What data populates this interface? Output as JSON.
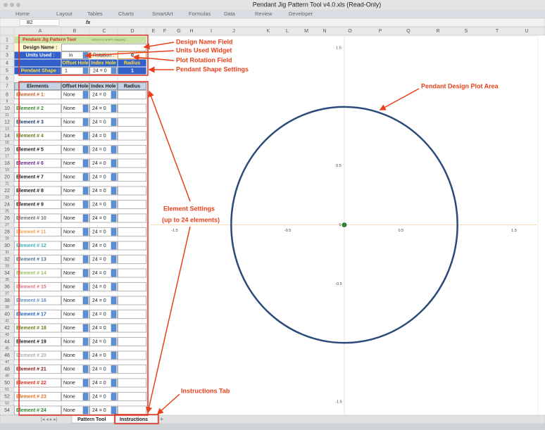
{
  "window": {
    "title": "Pendant Jig Pattern Tool v4.0.xls (Read-Only)"
  },
  "ribbon": {
    "tabs": [
      "Home",
      "Layout",
      "Tables",
      "Charts",
      "SmartArt",
      "Formulas",
      "Data",
      "Review",
      "Developer"
    ]
  },
  "formula_bar": {
    "cell": "B2",
    "fx": "fx"
  },
  "columns": [
    "A",
    "B",
    "C",
    "D",
    "E",
    "F",
    "G",
    "H",
    "I",
    "J",
    "K",
    "L",
    "M",
    "N",
    "O",
    "P",
    "Q",
    "R",
    "S",
    "T",
    "U"
  ],
  "rows": [
    1,
    2,
    3,
    4,
    5,
    6,
    7,
    8,
    9,
    10,
    11,
    12,
    13,
    14,
    15,
    16,
    17,
    18,
    19,
    20,
    21,
    22,
    23,
    24,
    25,
    26,
    27,
    28,
    29,
    30,
    31,
    32,
    33,
    34,
    35,
    36,
    37,
    38,
    39,
    40,
    41,
    42,
    43,
    44,
    45,
    46,
    47,
    48,
    49,
    50,
    51,
    52,
    53,
    54
  ],
  "form": {
    "title": "Pendant Jig Pattern Tool",
    "version": "version 4.0 by W.P. Kloepping",
    "design_name_label": "Design Name :",
    "units_label": "Units Used :",
    "units": "in",
    "rotation_label": "Rotation :",
    "rotation": 0,
    "shape_headers": [
      "Offset Hole",
      "Index Hole",
      "Radius"
    ],
    "shape_label": "Pendant Shape :",
    "shape": {
      "offset": 1,
      "index": "24 = 0",
      "radius": 1
    },
    "element_headers": [
      "Elements",
      "Offset Hole",
      "Index Hole",
      "Radius"
    ],
    "elements": [
      {
        "name": "Element # 1:",
        "offset": "None",
        "index": "24 = 0",
        "color": "#c0602a"
      },
      {
        "name": "Element # 2",
        "offset": "None",
        "index": "24 = 0",
        "color": "#3a8a2a"
      },
      {
        "name": "Element # 3",
        "offset": "None",
        "index": "24 = 0",
        "color": "#1a3a6a"
      },
      {
        "name": "Element # 4",
        "offset": "None",
        "index": "24 = 0",
        "color": "#6a7a1a"
      },
      {
        "name": "Element # 5",
        "offset": "None",
        "index": "24 = 0",
        "color": "#202020"
      },
      {
        "name": "Element # 6",
        "offset": "None",
        "index": "24 = 0",
        "color": "#6a2a8a"
      },
      {
        "name": "Element # 7",
        "offset": "None",
        "index": "24 = 0",
        "color": "#202020"
      },
      {
        "name": "Element # 8",
        "offset": "None",
        "index": "24 = 0",
        "color": "#202020"
      },
      {
        "name": "Element # 9",
        "offset": "None",
        "index": "24 = 0",
        "color": "#202020"
      },
      {
        "name": "Element # 10",
        "offset": "None",
        "index": "24 = 0",
        "color": "#707070"
      },
      {
        "name": "Element # 11",
        "offset": "None",
        "index": "24 = 0",
        "color": "#f0a050"
      },
      {
        "name": "Element # 12",
        "offset": "None",
        "index": "24 = 0",
        "color": "#40b0c0"
      },
      {
        "name": "Element # 13",
        "offset": "None",
        "index": "24 = 0",
        "color": "#50708a"
      },
      {
        "name": "Element # 14",
        "offset": "None",
        "index": "24 = 0",
        "color": "#a0c060"
      },
      {
        "name": "Element # 15",
        "offset": "None",
        "index": "24 = 0",
        "color": "#e07080"
      },
      {
        "name": "Element # 16",
        "offset": "None",
        "index": "24 = 0",
        "color": "#6090c0"
      },
      {
        "name": "Element # 17",
        "offset": "None",
        "index": "24 = 0",
        "color": "#2060c0"
      },
      {
        "name": "Element # 18",
        "offset": "None",
        "index": "24 = 0",
        "color": "#6a7a1a"
      },
      {
        "name": "Element # 19",
        "offset": "None",
        "index": "24 = 0",
        "color": "#202020"
      },
      {
        "name": "Element # 20",
        "offset": "None",
        "index": "24 = 0",
        "color": "#b0b0b0"
      },
      {
        "name": "Element # 21",
        "offset": "None",
        "index": "24 = 0",
        "color": "#802020"
      },
      {
        "name": "Element # 22",
        "offset": "None",
        "index": "24 = 0",
        "color": "#e03020"
      },
      {
        "name": "Element # 23",
        "offset": "None",
        "index": "24 = 0",
        "color": "#e07020"
      },
      {
        "name": "Element # 24",
        "offset": "None",
        "index": "24 = 0",
        "color": "#2a8a2a"
      }
    ]
  },
  "plot": {
    "xlim": [
      -1.5,
      1.5
    ],
    "ylim": [
      -1.5,
      1.5
    ],
    "xticks": [
      -1.5,
      -0.5,
      0,
      0.5,
      1.5
    ],
    "yticks": [
      1.5,
      0.5,
      -0.5,
      -1.5
    ],
    "circle_color": "#2a4a7a"
  },
  "annotations": {
    "design_name": "Design Name Field",
    "units": "Units Used Widget",
    "rotation": "Plot Rotation Field",
    "shape": "Pendant Shape Settings",
    "plot": "Pendant Design Plot Area",
    "elements": "Element Settings",
    "elements_note": "(up to 24 elements)",
    "instructions": "Instructions Tab"
  },
  "sheet_tabs": [
    "Pattern Tool",
    "Instructions"
  ]
}
